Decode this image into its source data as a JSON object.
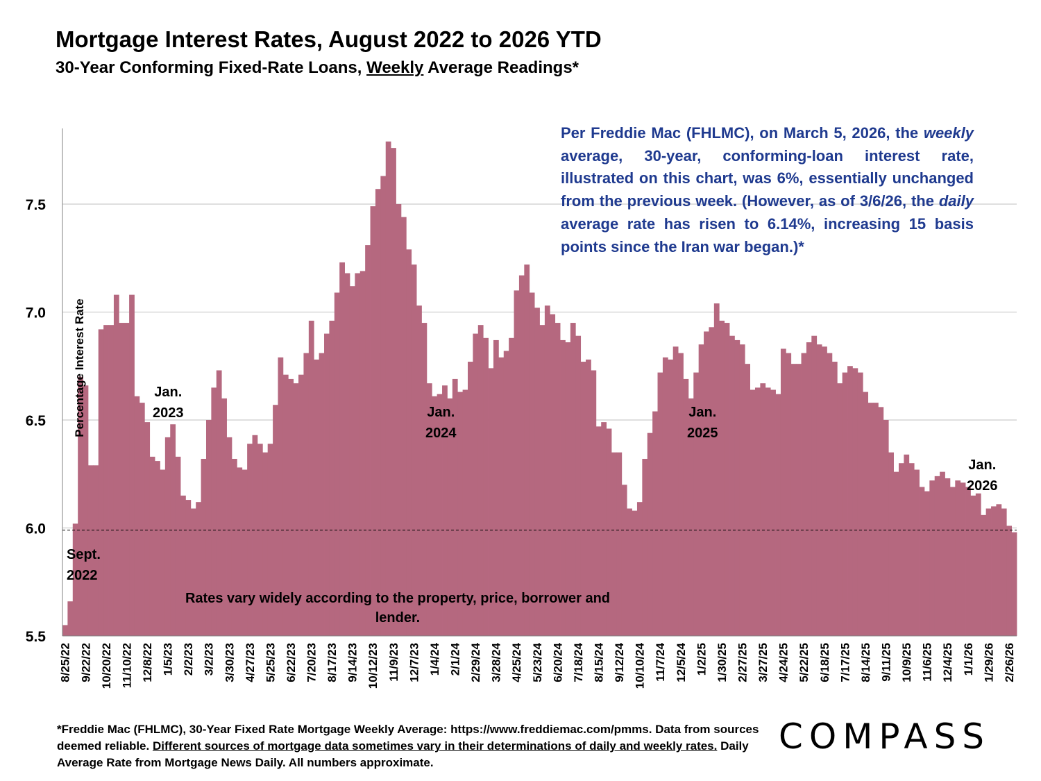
{
  "header": {
    "title": "Mortgage Interest Rates, August 2022 to 2026 YTD",
    "subtitle_pre": "30-Year Conforming Fixed-Rate Loans, ",
    "subtitle_u": "Weekly",
    "subtitle_post": " Average Readings*"
  },
  "note": {
    "p1": "Per Freddie Mac (FHLMC), on March 5, 2026, the ",
    "p2": "weekly",
    "p3": " average, 30-year, conforming-loan interest rate, illustrated on this chart, was 6%, essentially unchanged from the previous week. (However, as of 3/6/26, the ",
    "p4": "daily",
    "p5": " average rate has risen to 6.14%, increasing 15 basis points since the Iran war began.)*"
  },
  "annotations": {
    "sept2022": [
      "Sept.",
      "2022"
    ],
    "jan2023": [
      "Jan.",
      "2023"
    ],
    "jan2024": [
      "Jan.",
      "2024"
    ],
    "jan2025": [
      "Jan.",
      "2025"
    ],
    "jan2026": [
      "Jan.",
      "2026"
    ]
  },
  "disclaimer": "Rates vary widely according to the property, price, borrower and lender.",
  "footnote": {
    "a": "*Freddie Mac (FHLMC), 30-Year Fixed Rate Mortgage Weekly Average:  https://www.freddiemac.com/pmms. Data from sources deemed reliable. ",
    "b": "Different sources of mortgage data sometimes vary in their determinations of daily and weekly rates.",
    "c": " Daily Average Rate from Mortgage News Daily. All numbers approximate."
  },
  "brand": "COMPASS",
  "colors": {
    "bar": "#b5687f",
    "note_text": "#1f3a8f",
    "gridline": "#bfbfbf"
  },
  "chart_data": {
    "type": "bar",
    "title": "Mortgage Interest Rates, August 2022 to 2026 YTD",
    "ylabel": "Percentage Interest  Rate",
    "xlabel": "",
    "ylim": [
      5.5,
      7.85
    ],
    "yticks": [
      "5.5",
      "6.0",
      "6.5",
      "7.0",
      "7.5"
    ],
    "reference_line": 5.99,
    "x_tick_labels": [
      "8/25/22",
      "9/22/22",
      "10/20/22",
      "11/10/22",
      "12/8/22",
      "1/5/23",
      "2/2/23",
      "3/2/23",
      "3/30/23",
      "4/27/23",
      "5/25/23",
      "6/22/23",
      "7/20/23",
      "8/17/23",
      "9/14/23",
      "10/12/23",
      "11/9/23",
      "12/7/23",
      "1/4/24",
      "2/1/24",
      "2/29/24",
      "3/28/24",
      "4/25/24",
      "5/23/24",
      "6/20/24",
      "7/18/24",
      "8/15/24",
      "9/12/24",
      "10/10/24",
      "11/7/24",
      "12/5/24",
      "1/2/25",
      "1/30/25",
      "2/27/25",
      "3/27/25",
      "4/24/25",
      "5/22/25",
      "6/18/25",
      "7/17/25",
      "8/14/25",
      "9/11/25",
      "10/9/25",
      "11/6/25",
      "12/4/25",
      "1/1/26",
      "1/29/26",
      "2/26/26"
    ],
    "series": [
      {
        "values": [
          5.55,
          5.66,
          6.02,
          6.7,
          6.66,
          6.29,
          6.29,
          6.92,
          6.94,
          6.94,
          7.08,
          6.95,
          6.95,
          7.08,
          6.61,
          6.58,
          6.49,
          6.33,
          6.31,
          6.27,
          6.42,
          6.48,
          6.33,
          6.15,
          6.13,
          6.09,
          6.12,
          6.32,
          6.5,
          6.65,
          6.73,
          6.6,
          6.42,
          6.32,
          6.28,
          6.27,
          6.39,
          6.43,
          6.39,
          6.35,
          6.39,
          6.57,
          6.79,
          6.71,
          6.69,
          6.67,
          6.71,
          6.81,
          6.96,
          6.78,
          6.81,
          6.9,
          6.96,
          7.09,
          7.23,
          7.18,
          7.12,
          7.18,
          7.19,
          7.31,
          7.49,
          7.57,
          7.63,
          7.79,
          7.76,
          7.5,
          7.44,
          7.29,
          7.22,
          7.03,
          6.95,
          6.67,
          6.61,
          6.62,
          6.66,
          6.6,
          6.69,
          6.63,
          6.64,
          6.77,
          6.9,
          6.94,
          6.88,
          6.74,
          6.87,
          6.79,
          6.82,
          6.88,
          7.1,
          7.17,
          7.22,
          7.09,
          7.02,
          6.94,
          7.03,
          6.99,
          6.95,
          6.87,
          6.86,
          6.95,
          6.89,
          6.77,
          6.78,
          6.73,
          6.47,
          6.49,
          6.46,
          6.35,
          6.35,
          6.2,
          6.09,
          6.08,
          6.12,
          6.32,
          6.44,
          6.54,
          6.72,
          6.79,
          6.78,
          6.84,
          6.81,
          6.69,
          6.6,
          6.72,
          6.85,
          6.91,
          6.93,
          7.04,
          6.96,
          6.95,
          6.89,
          6.87,
          6.85,
          6.76,
          6.64,
          6.65,
          6.67,
          6.65,
          6.64,
          6.62,
          6.83,
          6.81,
          6.76,
          6.76,
          6.81,
          6.86,
          6.89,
          6.85,
          6.84,
          6.81,
          6.77,
          6.67,
          6.72,
          6.75,
          6.74,
          6.72,
          6.63,
          6.58,
          6.58,
          6.56,
          6.5,
          6.35,
          6.26,
          6.3,
          6.34,
          6.3,
          6.27,
          6.19,
          6.17,
          6.22,
          6.24,
          6.26,
          6.23,
          6.19,
          6.22,
          6.21,
          6.19,
          6.15,
          6.16,
          6.06,
          6.09,
          6.1,
          6.11,
          6.09,
          6.01,
          5.98
        ]
      }
    ]
  }
}
